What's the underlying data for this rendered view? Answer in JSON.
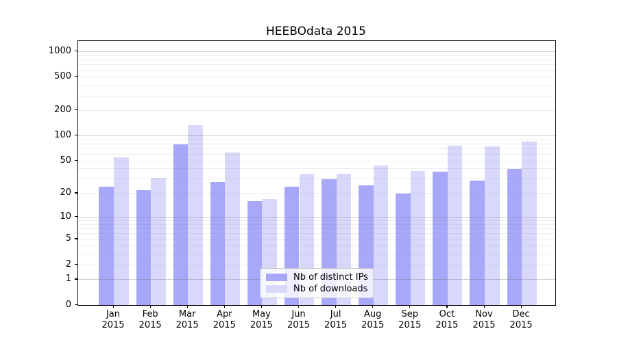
{
  "title": "HEEBOdata 2015",
  "chart_data": {
    "type": "bar",
    "title": "HEEBOdata 2015",
    "categories": [
      "Jan 2015",
      "Feb 2015",
      "Mar 2015",
      "Apr 2015",
      "May 2015",
      "Jun 2015",
      "Jul 2015",
      "Aug 2015",
      "Sep 2015",
      "Oct 2015",
      "Nov 2015",
      "Dec 2015"
    ],
    "x_tick_months": [
      "Jan",
      "Feb",
      "Mar",
      "Apr",
      "May",
      "Jun",
      "Jul",
      "Aug",
      "Sep",
      "Oct",
      "Nov",
      "Dec"
    ],
    "x_tick_year": "2015",
    "series": [
      {
        "name": "Nb of distinct IPs",
        "color": "#a8a8fa",
        "values": [
          24,
          22,
          79,
          28,
          16,
          24,
          30,
          25,
          20,
          37,
          29,
          40
        ]
      },
      {
        "name": "Nb of downloads",
        "color": "#d8d8fa",
        "values": [
          55,
          31,
          135,
          63,
          17,
          35,
          35,
          44,
          38,
          76,
          75,
          85
        ]
      }
    ],
    "xlabel": "",
    "ylabel": "",
    "yscale": "log1p",
    "ylim": [
      0,
      1330
    ],
    "y_tick_labels": [
      "1000",
      "500",
      "200",
      "100",
      "50",
      "20",
      "10",
      "5",
      "2",
      "1",
      "0"
    ],
    "y_tick_values": [
      1000,
      500,
      200,
      100,
      50,
      20,
      10,
      5,
      2,
      1,
      0
    ],
    "grid": "major and minor horizontal gridlines",
    "legend_position": "lower center"
  },
  "colors": {
    "background": "#ffffff",
    "bar_distinct_ips": "#a8a8fa",
    "bar_downloads": "#d8d8fa",
    "grid_major": "rgba(120,120,120,0.36)",
    "grid_minor": "rgba(120,120,120,0.14)",
    "spine": "#000000",
    "text": "#000000",
    "legend_border": "#cccccc"
  }
}
